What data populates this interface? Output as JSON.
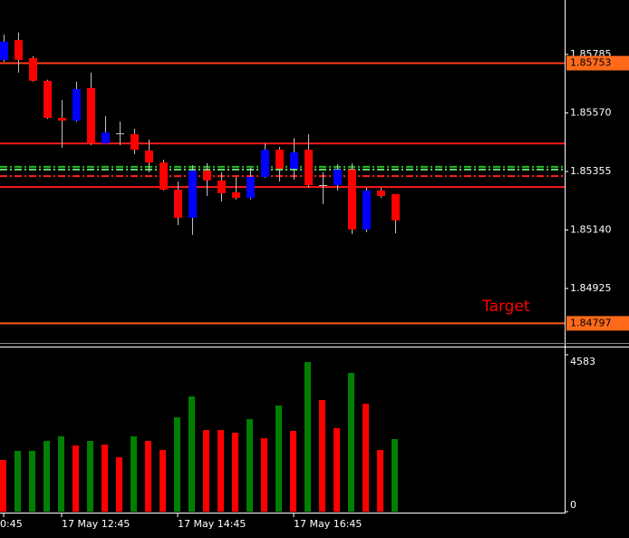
{
  "chart_data": [
    {
      "type": "candlestick",
      "categories": [
        "0:45",
        null,
        null,
        null,
        "17 May 12:45",
        null,
        null,
        null,
        null,
        null,
        null,
        null,
        "17 May 14:45",
        null,
        null,
        null,
        null,
        null,
        null,
        null,
        "17 May 16:45",
        null,
        null,
        null,
        null,
        null,
        null,
        null
      ],
      "open": [
        1.85765,
        1.85838,
        1.85772,
        1.85688,
        1.85552,
        1.85542,
        1.85662,
        1.85458,
        1.85495,
        1.85492,
        1.85432,
        1.85388,
        1.85288,
        1.85185,
        1.85358,
        1.85322,
        1.85278,
        1.85258,
        1.85335,
        1.85435,
        1.85365,
        1.85435,
        1.85305,
        1.85305,
        1.85362,
        1.85142,
        1.85285,
        1.85272
      ],
      "high": [
        1.85858,
        1.85865,
        1.85778,
        1.85692,
        1.85618,
        1.85685,
        1.85718,
        1.85558,
        1.85538,
        1.85512,
        1.85472,
        1.85398,
        1.85318,
        1.85378,
        1.85385,
        1.85352,
        1.85335,
        1.85368,
        1.85458,
        1.85445,
        1.85478,
        1.85492,
        1.85352,
        1.85382,
        1.85385,
        1.85295,
        1.85295,
        1.85272
      ],
      "low": [
        1.85758,
        1.85718,
        1.85685,
        1.85548,
        1.85442,
        1.85538,
        1.85452,
        1.85458,
        1.85452,
        1.85418,
        1.85352,
        1.85285,
        1.85158,
        1.85122,
        1.85265,
        1.85245,
        1.85252,
        1.85252,
        1.85332,
        1.85318,
        1.85325,
        1.85295,
        1.85235,
        1.85285,
        1.85125,
        1.85132,
        1.85258,
        1.85128
      ],
      "close": [
        1.85832,
        1.85765,
        1.85688,
        1.85552,
        1.85542,
        1.85658,
        1.85458,
        1.85498,
        1.85495,
        1.85435,
        1.85388,
        1.85288,
        1.85185,
        1.85358,
        1.85322,
        1.85275,
        1.85258,
        1.85335,
        1.85435,
        1.85365,
        1.85425,
        1.85305,
        1.85305,
        1.85362,
        1.85142,
        1.85285,
        1.85265,
        1.85175
      ],
      "up_color": "#0000ff",
      "down_color": "#ff0000",
      "wick_color": "#c0c0c0",
      "ylim": [
        1.84725,
        1.85985
      ],
      "yticks": [
        1.85785,
        {
          "value": 1.8557,
          "label": "1.85570"
        },
        1.85355,
        {
          "value": 1.8514,
          "label": "1.85140"
        },
        1.84925
      ],
      "levels": [
        {
          "value": 1.85753,
          "color": "#ff3c1e",
          "style": "solid",
          "tagged": true
        },
        {
          "value": 1.85458,
          "color": "#ff1a1a",
          "style": "solid",
          "tagged": false
        },
        {
          "value": 1.85372,
          "color": "#22bb22",
          "style": "dash-dot",
          "tagged": false
        },
        {
          "value": 1.85362,
          "color": "#66dd66",
          "style": "dash-dot",
          "tagged": false
        },
        {
          "value": 1.85338,
          "color": "#ff2020",
          "style": "dash-dot",
          "tagged": false
        },
        {
          "value": 1.85298,
          "color": "#ff1a1a",
          "style": "solid",
          "tagged": false
        },
        {
          "value": 1.84797,
          "color": "#ff5a1e",
          "style": "solid",
          "tagged": true
        }
      ],
      "annotation": "Target",
      "annotation_color": "#ff0000",
      "tag_color": "#ff6a1a"
    },
    {
      "type": "bar",
      "values": [
        1510,
        1775,
        1775,
        2066,
        2199,
        1934,
        2066,
        1960,
        1589,
        2199,
        2066,
        1801,
        2755,
        3364,
        2384,
        2384,
        2305,
        2702,
        2146,
        3099,
        2358,
        4371,
        3258,
        2437,
        4053,
        3152,
        1801,
        2119
      ],
      "colors": [
        "#ff0000",
        "#008000",
        "#008000",
        "#008000",
        "#008000",
        "#ff0000",
        "#008000",
        "#ff0000",
        "#ff0000",
        "#008000",
        "#ff0000",
        "#ff0000",
        "#008000",
        "#008000",
        "#ff0000",
        "#ff0000",
        "#ff0000",
        "#008000",
        "#ff0000",
        "#008000",
        "#ff0000",
        "#008000",
        "#ff0000",
        "#ff0000",
        "#008000",
        "#ff0000",
        "#ff0000",
        "#008000"
      ],
      "ylim": [
        0,
        4795
      ],
      "yticks": [
        0,
        4583
      ]
    }
  ]
}
